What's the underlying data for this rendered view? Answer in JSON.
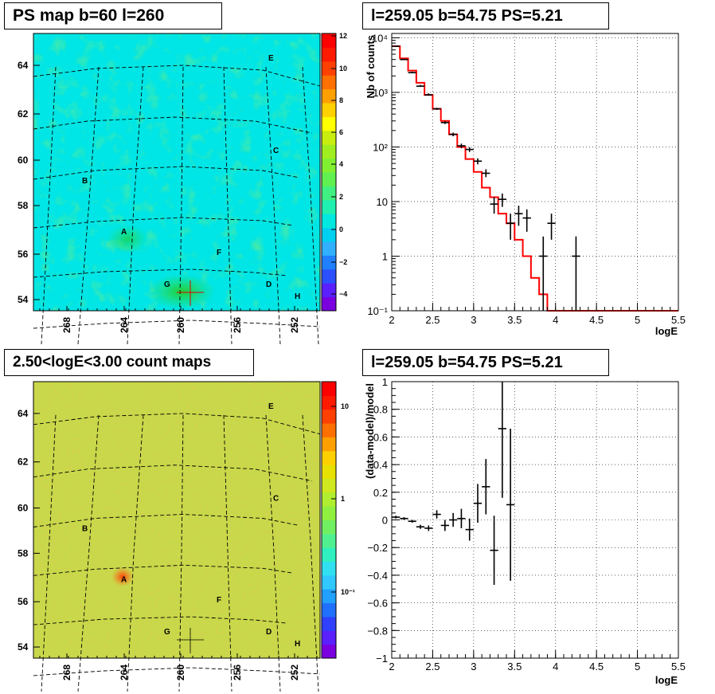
{
  "panels": {
    "ps_map_title": "PS map b=60 l=260",
    "count_map_title": "2.50<logE<3.00 count maps",
    "spectrum_title": "l=259.05 b=54.75 PS=5.21",
    "residual_title": "l=259.05 b=54.75 PS=5.21"
  },
  "sky_maps": {
    "x_ticks": [
      "268",
      "264",
      "260",
      "256",
      "252"
    ],
    "y_ticks": [
      "64",
      "62",
      "60",
      "58",
      "56",
      "54"
    ],
    "point_labels": [
      {
        "label": "E"
      },
      {
        "label": "C"
      },
      {
        "label": "B"
      },
      {
        "label": "A"
      },
      {
        "label": "F"
      },
      {
        "label": "G"
      },
      {
        "label": "D"
      },
      {
        "label": "H"
      }
    ],
    "ps_colorbar_ticks": [
      "12",
      "10",
      "8",
      "6",
      "4",
      "2",
      "0",
      "−2",
      "−4"
    ],
    "count_colorbar_ticks": [
      "10",
      "1",
      "10⁻¹"
    ]
  },
  "colors": {
    "ps_background": "#00e5e5",
    "ps_hotspot": "#33dd33",
    "count_background": "#c8d84a",
    "count_hot": "#ff6a1a",
    "model_line": "#ff0000",
    "data_marker": "#000000"
  },
  "chart_data": [
    {
      "type": "line",
      "title": "l=259.05 b=54.75 PS=5.21",
      "xlabel": "logE",
      "ylabel": "Nb of counts",
      "xlim": [
        2,
        5.5
      ],
      "ylim": [
        0.1,
        12000
      ],
      "yscale": "log",
      "grid": true,
      "x_ticks": [
        "2",
        "2.5",
        "3",
        "3.5",
        "4",
        "4.5",
        "5",
        "5.5"
      ],
      "y_ticks": [
        "10⁻¹",
        "1",
        "10",
        "10²",
        "10³",
        "10⁴"
      ],
      "series": [
        {
          "kind": "model_histogram",
          "bin_edges": [
            2.0,
            2.1,
            2.2,
            2.3,
            2.4,
            2.5,
            2.6,
            2.7,
            2.8,
            2.9,
            3.0,
            3.1,
            3.2,
            3.3,
            3.4,
            3.5,
            3.6,
            3.7,
            3.8,
            3.9,
            4.0,
            5.5
          ],
          "values": [
            7000,
            4200,
            2500,
            1500,
            900,
            500,
            300,
            170,
            100,
            60,
            35,
            18,
            12,
            6,
            4,
            2,
            1,
            0.4,
            0.2,
            0.1,
            0.1
          ]
        },
        {
          "kind": "data_points",
          "x": [
            2.05,
            2.15,
            2.25,
            2.35,
            2.45,
            2.55,
            2.65,
            2.75,
            2.85,
            2.95,
            3.05,
            3.15,
            3.25,
            3.35,
            3.45,
            3.55,
            3.65,
            3.85,
            3.95,
            4.25
          ],
          "y": [
            7000,
            4000,
            2300,
            1300,
            900,
            500,
            280,
            170,
            105,
            90,
            55,
            33,
            9,
            11,
            4,
            6,
            5,
            1,
            4,
            1
          ],
          "yerr_low": [
            6900,
            3900,
            2250,
            1265,
            870,
            478,
            263,
            157,
            95,
            81,
            48,
            28,
            6,
            8,
            2,
            3.6,
            2.8,
            0.1,
            2,
            0.1
          ],
          "yerr_high": [
            7170,
            4130,
            2400,
            1370,
            960,
            522,
            297,
            183,
            115,
            99,
            62,
            39,
            12,
            14,
            6,
            8.4,
            7.2,
            2.3,
            6,
            2.3
          ]
        }
      ]
    },
    {
      "type": "scatter",
      "title": "l=259.05 b=54.75 PS=5.21",
      "xlabel": "logE",
      "ylabel": "(data-model)/model",
      "xlim": [
        2,
        5.5
      ],
      "ylim": [
        -1,
        1
      ],
      "grid": true,
      "x_ticks": [
        "2",
        "2.5",
        "3",
        "3.5",
        "4",
        "4.5",
        "5",
        "5.5"
      ],
      "y_ticks": [
        "1",
        "0.8",
        "0.6",
        "0.4",
        "0.2",
        "0",
        "−0.2",
        "−0.4",
        "−0.6",
        "−0.8",
        "−1"
      ],
      "series": [
        {
          "kind": "data_points",
          "x": [
            2.05,
            2.15,
            2.25,
            2.35,
            2.45,
            2.55,
            2.65,
            2.75,
            2.85,
            2.95,
            3.05,
            3.15,
            3.25,
            3.35,
            3.45
          ],
          "y": [
            0.02,
            0.01,
            -0.01,
            -0.05,
            -0.06,
            0.04,
            -0.04,
            0.0,
            0.01,
            -0.07,
            0.12,
            0.24,
            -0.22,
            0.66,
            0.11
          ],
          "yerr": [
            0.01,
            0.01,
            0.01,
            0.015,
            0.02,
            0.03,
            0.04,
            0.05,
            0.07,
            0.08,
            0.14,
            0.2,
            0.25,
            0.5,
            0.55
          ]
        }
      ]
    }
  ]
}
